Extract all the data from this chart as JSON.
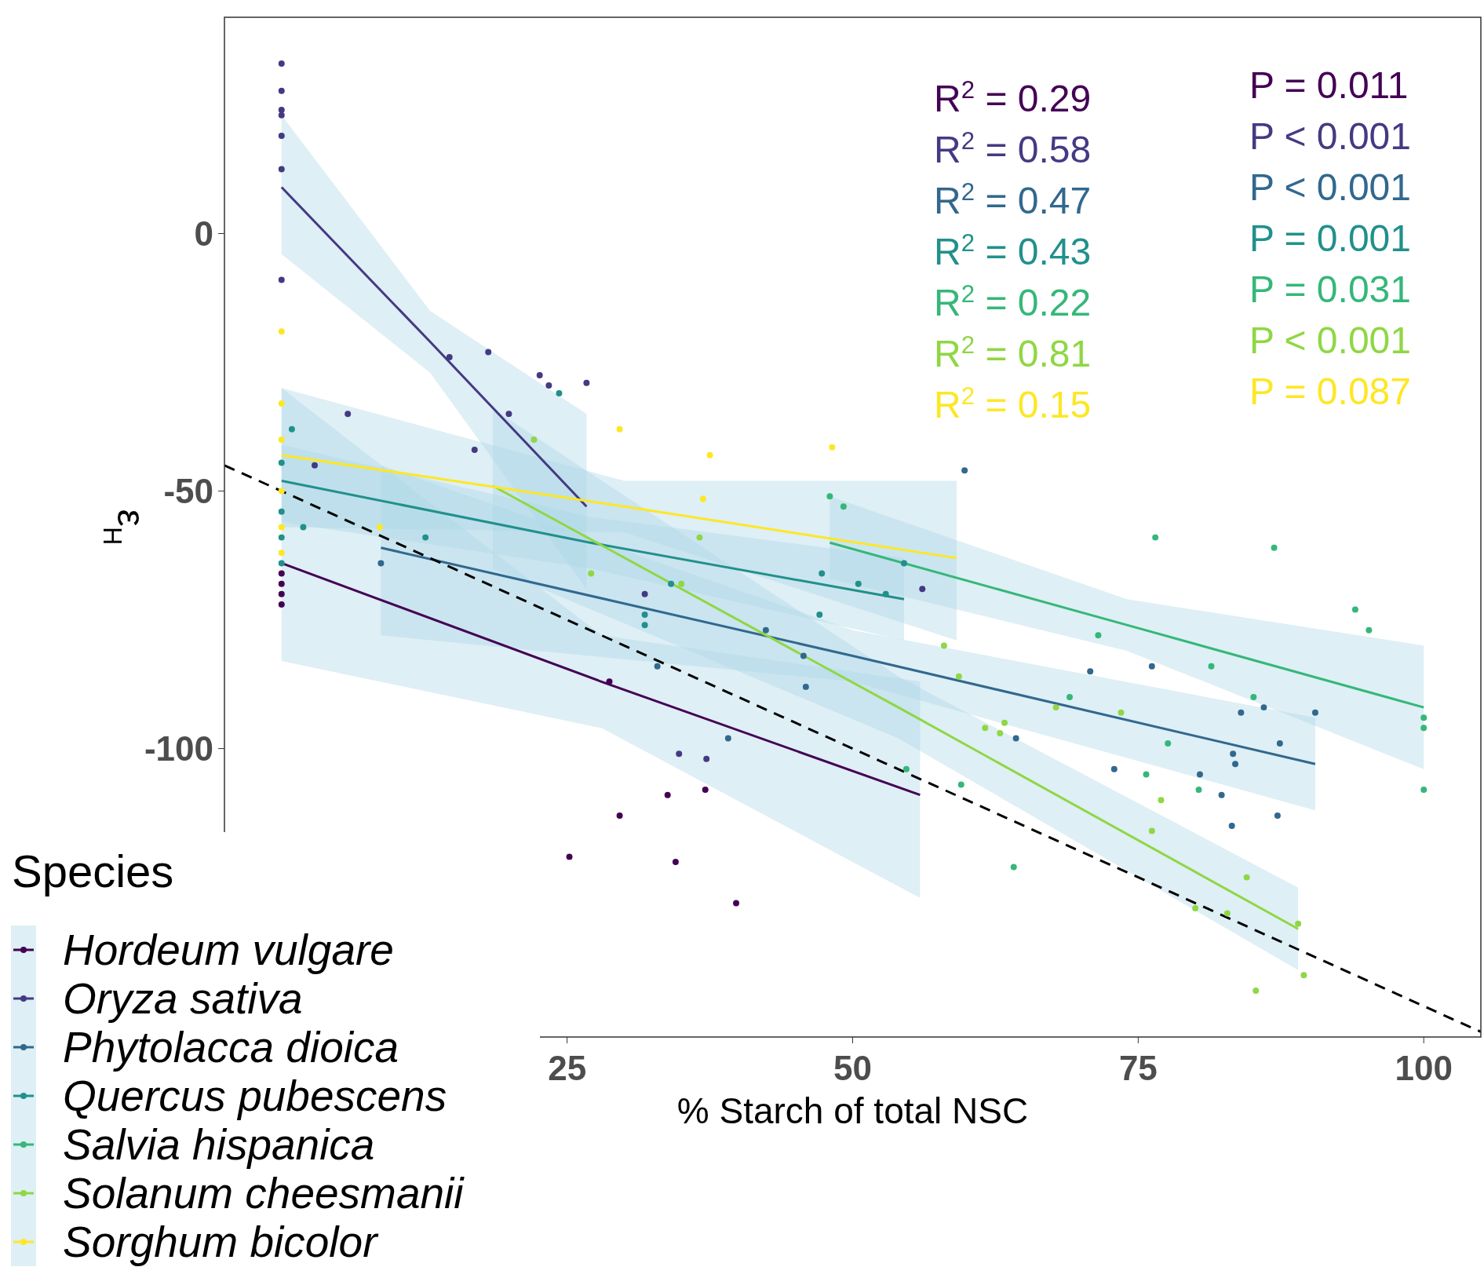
{
  "chart_data": {
    "type": "scatter",
    "xlabel": "% Starch of total NSC",
    "ylabel": "ε$_{H}$",
    "legend_title": "Species",
    "legend": "bottom left",
    "grid": false,
    "marker": "circle",
    "xlim": [
      -5,
      105
    ],
    "ylim": [
      -156,
      42
    ],
    "xticks": [
      25,
      50,
      75,
      100
    ],
    "yticks": [
      0,
      -50,
      -100
    ],
    "annotations": [
      "R$^{2}$ = 0.29",
      "R$^{2}$ = 0.58",
      "R$^{2}$ = 0.47",
      "R$^{2}$ = 0.43",
      "R$^{2}$ = 0.22",
      "R$^{2}$ = 0.81",
      "R$^{2}$ = 0.15",
      "P = 0.011",
      "P < 0.001",
      "P < 0.001",
      "P = 0.001",
      "P = 0.031",
      "P < 0.001",
      "P = 0.087"
    ],
    "series": [
      {
        "name": "Hordeum vulgare",
        "color": "#440154",
        "x": [
          0,
          0,
          0,
          0,
          28.7,
          25.2,
          29.6,
          33.8,
          37.1,
          34.5,
          39.8
        ],
        "values": [
          -66,
          -68,
          -70,
          -72,
          -87,
          -121,
          -113,
          -109,
          -108,
          -122,
          -130
        ]
      },
      {
        "name": "Oryza sativa",
        "color": "#443a83",
        "x": [
          0,
          0,
          0,
          0,
          0,
          0,
          0,
          5.8,
          2.9,
          14.7,
          18.1,
          16.9,
          22.6,
          23.4,
          26.7,
          19.9,
          56.1,
          34.8,
          37.2,
          31.8
        ],
        "values": [
          33,
          27.7,
          24,
          23,
          19,
          12.5,
          -9,
          -35,
          -45,
          -24,
          -23,
          -42,
          -27.5,
          -29.5,
          -29,
          -35,
          -69,
          -101,
          -102,
          -70
        ]
      },
      {
        "name": "Phytolacca dioica",
        "color": "#31688e",
        "x": [
          8.7,
          39.1,
          42.4,
          45.7,
          45.9,
          32.9,
          59.8,
          64.3,
          70.8,
          72.9,
          76.2,
          80.4,
          82.3,
          83.2,
          83.3,
          83.5,
          84,
          86,
          87.2,
          87.4,
          90.5
        ],
        "values": [
          -64,
          -98,
          -77,
          -82,
          -88,
          -84,
          -46,
          -98,
          -85,
          -104,
          -84,
          -105,
          -109,
          -115,
          -101,
          -103,
          -93,
          -92,
          -113,
          -99,
          -93
        ]
      },
      {
        "name": "Quercus pubescens",
        "color": "#21908c",
        "x": [
          0,
          0,
          0,
          0,
          0.9,
          1.9,
          12.6,
          24.3,
          31.8,
          31.8,
          34.1,
          47.1,
          54.5,
          52.9,
          50.5,
          47.3
        ],
        "values": [
          -44.5,
          -54,
          -59,
          -64,
          -38,
          -57,
          -59,
          -31,
          -74,
          -76,
          -68,
          -74,
          -64,
          -70,
          -68,
          -66
        ]
      },
      {
        "name": "Salvia hispanica",
        "color": "#35b779",
        "x": [
          48,
          49.2,
          54.7,
          59.5,
          64.1,
          76.5,
          86.9,
          75.7,
          80.3,
          81.4,
          85.1,
          94,
          95.2,
          100,
          100,
          100,
          69,
          71.5,
          77.6
        ],
        "values": [
          -51,
          -53,
          -104,
          -107,
          -123,
          -59,
          -61,
          -105,
          -108,
          -84,
          -90,
          -73,
          -77,
          -94,
          -96,
          -108,
          -90,
          -78,
          -99
        ]
      },
      {
        "name": "Solanum cheesmanii",
        "color": "#8fd744",
        "x": [
          58,
          59.3,
          61.6,
          62.9,
          63.3,
          67.8,
          73.5,
          76.2,
          77,
          80,
          82.8,
          84.5,
          85.3,
          89,
          89.5,
          36.6,
          35,
          22.1,
          27.1
        ],
        "values": [
          -80,
          -86,
          -96,
          -97,
          -95,
          -92,
          -93,
          -116,
          -110,
          -131,
          -132,
          -125,
          -147,
          -134,
          -144,
          -59,
          -68,
          -40,
          -66
        ]
      },
      {
        "name": "Sorghum bicolor",
        "color": "#fde725",
        "x": [
          0,
          0,
          0,
          0,
          0,
          0,
          8.6,
          29.6,
          37.5,
          48.2,
          36.9
        ],
        "values": [
          -19,
          -33,
          -40,
          -50,
          -57,
          -62,
          -57,
          -38,
          -43,
          -41.5,
          -51.5
        ]
      },
      {
        "type": "line",
        "marker": "none",
        "color": "#440154",
        "x": [
          0,
          28,
          55.9
        ],
        "values": [
          -64,
          -87,
          -109
        ],
        "lower": [
          -83,
          -96,
          -129
        ],
        "upper": [
          -30,
          -78,
          -87
        ]
      },
      {
        "type": "line",
        "marker": "none",
        "color": "#443a83",
        "x": [
          0,
          13,
          26.7
        ],
        "values": [
          9,
          -21,
          -53
        ],
        "lower": [
          -4,
          -27,
          -69
        ],
        "upper": [
          23,
          -15,
          -35
        ]
      },
      {
        "type": "line",
        "marker": "none",
        "color": "#31688e",
        "x": [
          8.7,
          50,
          90.5
        ],
        "values": [
          -61,
          -82,
          -103
        ],
        "lower": [
          -78,
          -87,
          -112
        ],
        "upper": [
          -45,
          -77,
          -94
        ]
      },
      {
        "type": "line",
        "marker": "none",
        "color": "#21908c",
        "x": [
          0,
          27,
          54.5
        ],
        "values": [
          -48,
          -60,
          -71
        ],
        "lower": [
          -56,
          -65,
          -79
        ],
        "upper": [
          -41,
          -55,
          -63
        ]
      },
      {
        "type": "line",
        "marker": "none",
        "color": "#35b779",
        "x": [
          48,
          74,
          100
        ],
        "values": [
          -60,
          -76,
          -92
        ],
        "lower": [
          -67,
          -81,
          -104
        ],
        "upper": [
          -51,
          -71,
          -80
        ]
      },
      {
        "type": "line",
        "marker": "none",
        "color": "#8fd744",
        "x": [
          18.5,
          54,
          89
        ],
        "values": [
          -49,
          -92,
          -135
        ],
        "lower": [
          -65,
          -98,
          -143
        ],
        "upper": [
          -34,
          -86,
          -127
        ]
      },
      {
        "type": "line",
        "marker": "none",
        "color": "#fde725",
        "x": [
          0,
          30,
          59.1
        ],
        "values": [
          -43,
          -53,
          -63
        ],
        "lower": [
          -57,
          -58,
          -79
        ],
        "upper": [
          -30,
          -48,
          -48
        ]
      },
      {
        "type": "line",
        "marker": "none",
        "color": "#000000",
        "line_style": "dashed",
        "x": [
          -5,
          105
        ],
        "values": [
          -45,
          -155
        ]
      }
    ]
  }
}
